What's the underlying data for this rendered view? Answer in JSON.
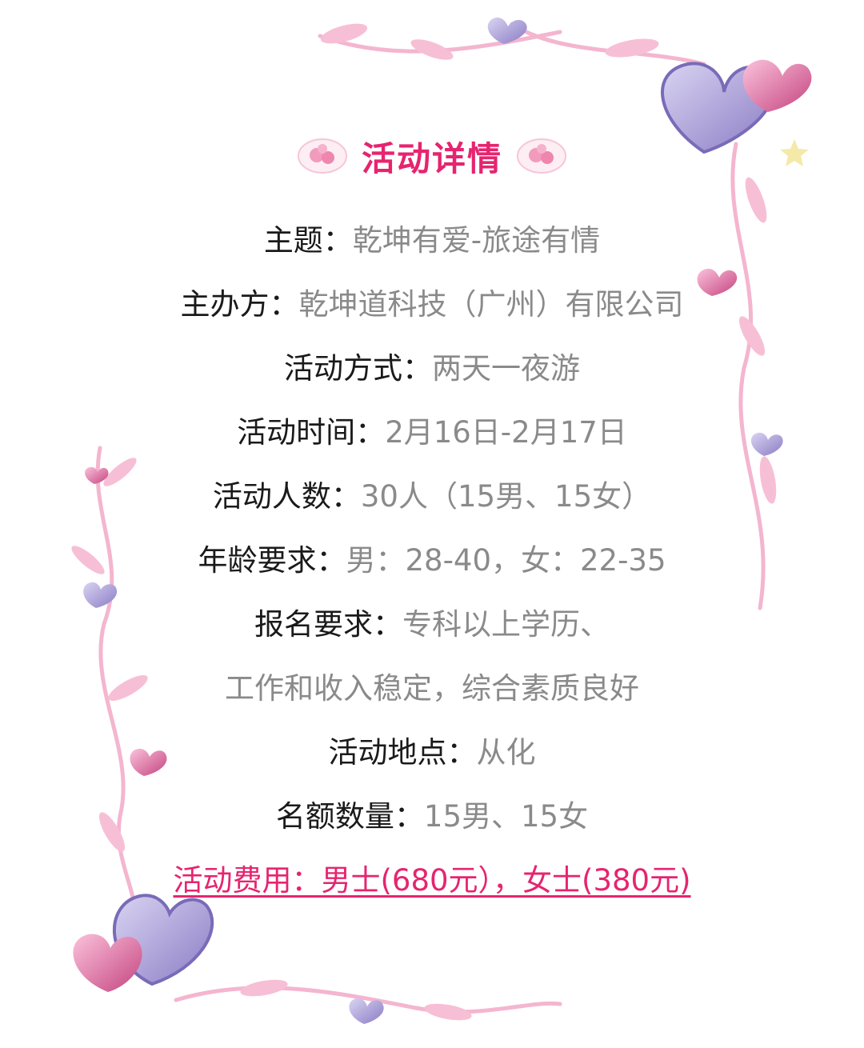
{
  "title": "活动详情",
  "colors": {
    "accent": "#e6246f",
    "label": "#1a1a1a",
    "value": "#8a8a8a"
  },
  "details": [
    {
      "label": "主题：",
      "value": "乾坤有爱-旅途有情"
    },
    {
      "label": "主办方：",
      "value": "乾坤道科技（广州）有限公司"
    },
    {
      "label": "活动方式：",
      "value": "两天一夜游"
    },
    {
      "label": "活动时间：",
      "value": "2月16日-2月17日"
    },
    {
      "label": "活动人数：",
      "value": "30人（15男、15女）"
    },
    {
      "label": "年龄要求：",
      "value": "男：28-40，女：22-35"
    },
    {
      "label": "报名要求：",
      "value": "专科以上学历、"
    },
    {
      "label": "",
      "value": "工作和收入稳定，综合素质良好"
    },
    {
      "label": "活动地点：",
      "value": "从化"
    },
    {
      "label": "名额数量：",
      "value": "15男、15女"
    }
  ],
  "fee": "活动费用：男士(680元），女士(380元)",
  "icons": [
    "rose-icon",
    "heart-icon",
    "star-icon",
    "vine-decoration"
  ]
}
